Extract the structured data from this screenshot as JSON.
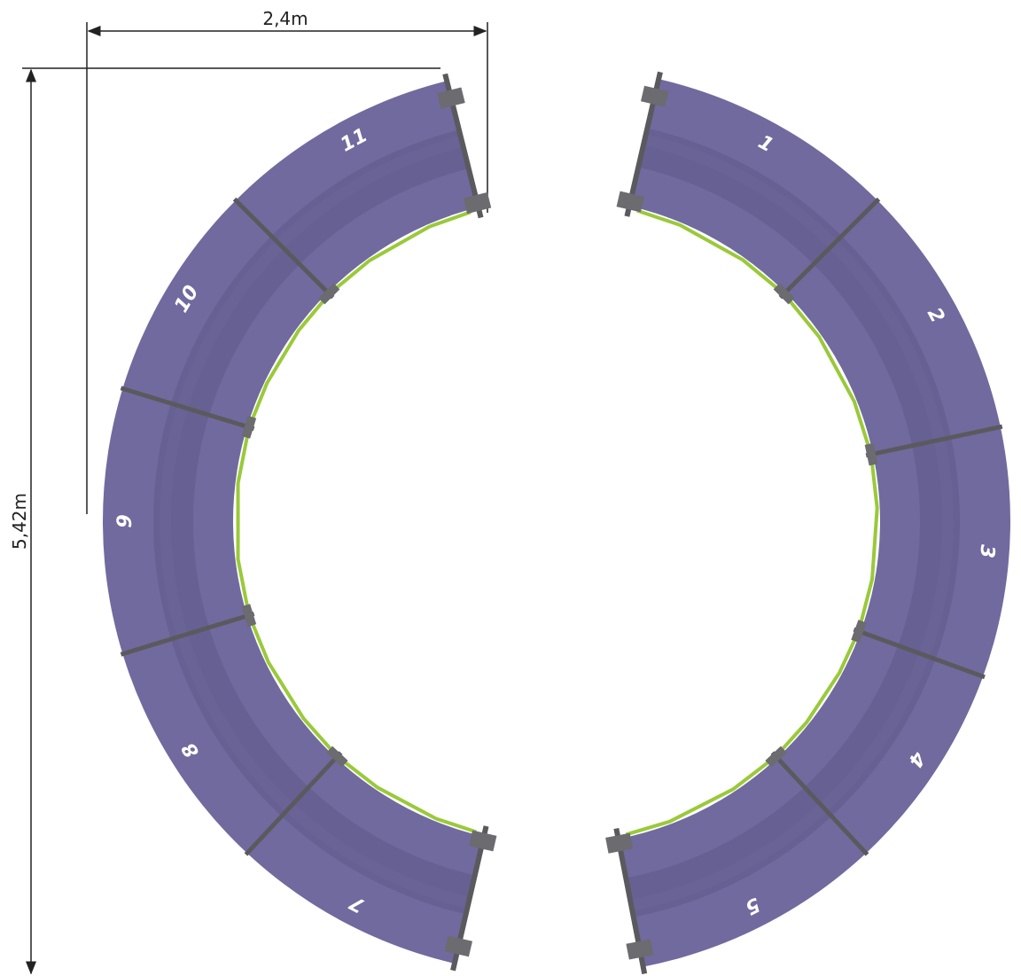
{
  "dimensions": {
    "width_label": "2,4m",
    "height_label": "5,42m"
  },
  "colors": {
    "segment_fill": "#716a9e",
    "segment_inner_shade": "#5e588a",
    "segment_edge": "#5a5a5e",
    "bracket": "#6b6b70",
    "support_frame": "#9ac93a",
    "dimension_line": "#222222"
  },
  "segments": [
    "1",
    "2",
    "3",
    "4",
    "5",
    "7",
    "8",
    "9",
    "10",
    "11"
  ]
}
